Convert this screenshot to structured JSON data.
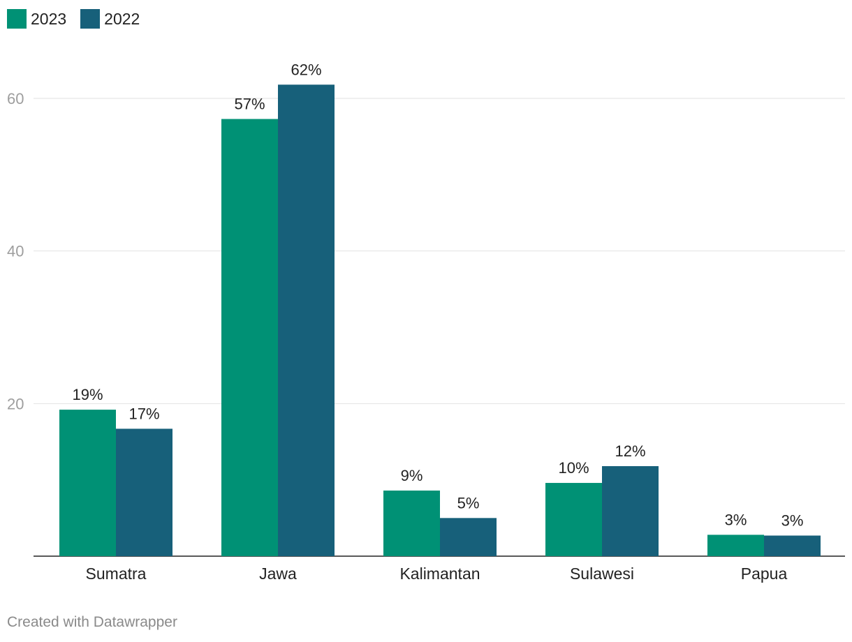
{
  "legend": [
    {
      "label": "2023",
      "color": "#009175"
    },
    {
      "label": "2022",
      "color": "#17607a"
    }
  ],
  "footer": {
    "text": "Created with Datawrapper"
  },
  "chart_data": {
    "type": "bar",
    "categories": [
      "Sumatra",
      "Jawa",
      "Kalimantan",
      "Sulawesi",
      "Papua"
    ],
    "series": [
      {
        "name": "2023",
        "color": "#009175",
        "values": [
          19.2,
          57.3,
          8.6,
          9.6,
          2.8
        ],
        "labels": [
          "19%",
          "57%",
          "9%",
          "10%",
          "3%"
        ]
      },
      {
        "name": "2022",
        "color": "#17607a",
        "values": [
          16.7,
          61.8,
          5.0,
          11.8,
          2.7
        ],
        "labels": [
          "17%",
          "62%",
          "5%",
          "12%",
          "3%"
        ]
      }
    ],
    "yticks": [
      20,
      40,
      60
    ],
    "ylim": [
      0,
      65
    ],
    "grid": true,
    "legend_position": "top-left",
    "title": "",
    "xlabel": "",
    "ylabel": ""
  }
}
